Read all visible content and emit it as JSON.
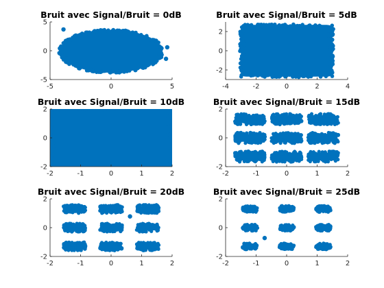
{
  "figure": {
    "marker_color": "#0072BD",
    "background": "#ffffff"
  },
  "chart_data": [
    {
      "type": "scatter",
      "title": "Bruit avec Signal/Bruit = 0dB",
      "xlim": [
        -5,
        5
      ],
      "ylim": [
        -5,
        5
      ],
      "xticks": [
        -5,
        0,
        5
      ],
      "yticks": [
        -5,
        0,
        5
      ],
      "grid": false,
      "constellation": {
        "i": [
          -1.2,
          0,
          1.2
        ],
        "q": [
          -1.3,
          0,
          1.3
        ]
      },
      "cloud": {
        "x_range": [
          -4.2,
          4.2
        ],
        "y_range": [
          -3.8,
          3.6
        ],
        "shape": "ellipse"
      },
      "outliers": [
        {
          "x": -3.9,
          "y": 3.7
        },
        {
          "x": 4.6,
          "y": 0.6
        },
        {
          "x": 4.5,
          "y": -1.4
        },
        {
          "x": 4.0,
          "y": -1.2
        }
      ]
    },
    {
      "type": "scatter",
      "title": "Bruit avec Signal/Bruit = 5dB",
      "xlim": [
        -4,
        4
      ],
      "ylim": [
        -3,
        3
      ],
      "xticks": [
        -4,
        -2,
        0,
        2,
        4
      ],
      "yticks": [
        -2,
        0,
        2
      ],
      "grid": false,
      "constellation": {
        "i": [
          -1.2,
          0,
          1.2
        ],
        "q": [
          -1.3,
          0,
          1.3
        ]
      },
      "cloud": {
        "x_range": [
          -3.0,
          3.0
        ],
        "y_range": [
          -2.7,
          2.7
        ],
        "shape": "rounded-rect"
      },
      "outliers": []
    },
    {
      "type": "scatter",
      "title": "Bruit avec Signal/Bruit = 10dB",
      "xlim": [
        -2,
        2
      ],
      "ylim": [
        -2,
        2
      ],
      "xticks": [
        -2,
        -1,
        0,
        1,
        2
      ],
      "yticks": [
        -2,
        0,
        2
      ],
      "grid": false,
      "constellation": {
        "i": [
          -1.2,
          0,
          1.2
        ],
        "q": [
          -1.3,
          0,
          1.3
        ]
      },
      "cloud": {
        "x_range": [
          -2.0,
          2.0
        ],
        "y_range": [
          -2.1,
          2.1
        ],
        "shape": "rounded-rect"
      },
      "outliers": []
    },
    {
      "type": "scatter",
      "title": "Bruit avec Signal/Bruit = 15dB",
      "xlim": [
        -2,
        2
      ],
      "ylim": [
        -2,
        2
      ],
      "xticks": [
        -2,
        -1,
        0,
        1,
        2
      ],
      "yticks": [
        -2,
        0,
        2
      ],
      "grid": false,
      "constellation": {
        "i": [
          -1.2,
          0,
          1.2
        ],
        "q": [
          -1.3,
          0,
          1.3
        ]
      },
      "cluster_half_width": [
        0.45,
        0.5
      ],
      "outliers": []
    },
    {
      "type": "scatter",
      "title": "Bruit avec Signal/Bruit = 20dB",
      "xlim": [
        -2,
        2
      ],
      "ylim": [
        -2,
        2
      ],
      "xticks": [
        -2,
        -1,
        0,
        1,
        2
      ],
      "yticks": [
        -2,
        0,
        2
      ],
      "grid": false,
      "constellation": {
        "i": [
          -1.2,
          0,
          1.2
        ],
        "q": [
          -1.3,
          0,
          1.3
        ]
      },
      "cluster_half_width": [
        0.32,
        0.35
      ],
      "outliers": [
        {
          "x": 0.62,
          "y": 0.78
        }
      ]
    },
    {
      "type": "scatter",
      "title": "Bruit avec Signal/Bruit = 25dB",
      "xlim": [
        -2,
        2
      ],
      "ylim": [
        -2,
        2
      ],
      "xticks": [
        -2,
        -1,
        0,
        1,
        2
      ],
      "yticks": [
        -2,
        0,
        2
      ],
      "grid": false,
      "constellation": {
        "i": [
          -1.2,
          0,
          1.2
        ],
        "q": [
          -1.3,
          0,
          1.3
        ]
      },
      "cluster_half_width": [
        0.2,
        0.22
      ],
      "outliers": [
        {
          "x": -0.72,
          "y": -0.72
        }
      ]
    }
  ]
}
